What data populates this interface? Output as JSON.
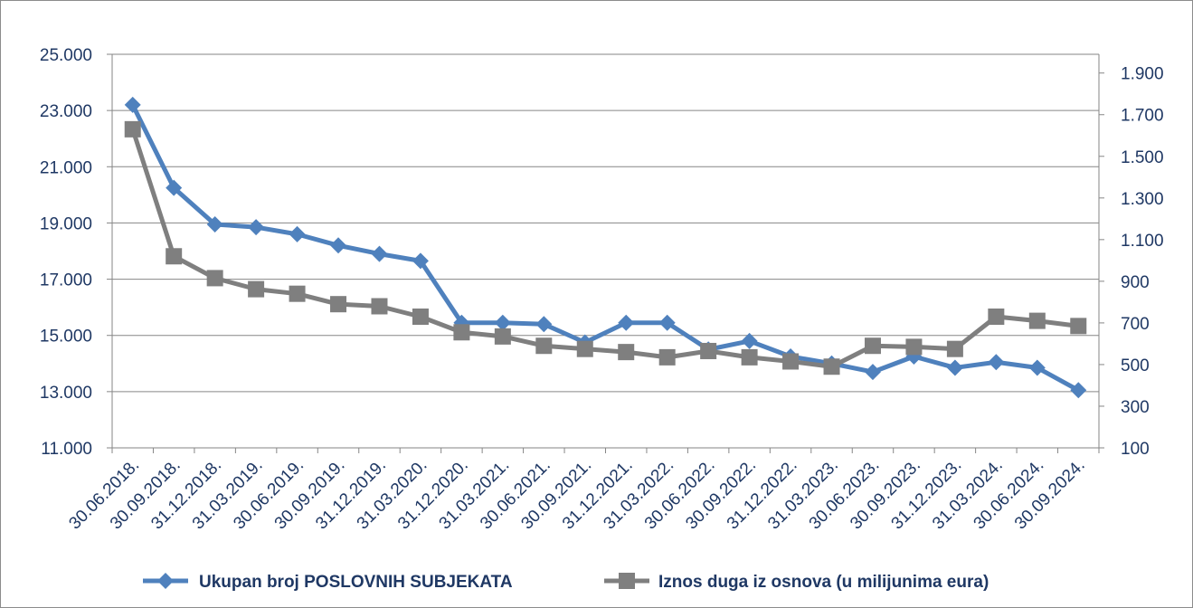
{
  "chart_data": {
    "type": "line",
    "categories": [
      "30.06.2018.",
      "30.09.2018.",
      "31.12.2018.",
      "31.03.2019.",
      "30.06.2019.",
      "30.09.2019.",
      "31.12.2019.",
      "31.03.2020.",
      "31.12.2020.",
      "31.03.2021.",
      "30.06.2021.",
      "30.09.2021.",
      "31.12.2021.",
      "31.03.2022.",
      "30.06.2022.",
      "30.09.2022.",
      "31.12.2022.",
      "31.03.2023.",
      "30.06.2023.",
      "30.09.2023.",
      "31.12.2023.",
      "31.03.2024.",
      "30.06.2024.",
      "30.09.2024."
    ],
    "series": [
      {
        "name": "Ukupan broj POSLOVNIH SUBJEKATA",
        "axis": "left",
        "color": "#4f81bd",
        "marker": "diamond",
        "values": [
          23200,
          20250,
          18950,
          18850,
          18600,
          18200,
          17900,
          17650,
          15450,
          15450,
          15400,
          14750,
          15450,
          15450,
          14500,
          14800,
          14250,
          14000,
          13700,
          14250,
          13850,
          14050,
          13850,
          13050
        ]
      },
      {
        "name": "Iznos duga iz osnova (u milijunima eura)",
        "axis": "right",
        "color": "#7f7f7f",
        "marker": "square",
        "values": [
          1630,
          1020,
          915,
          862,
          840,
          790,
          780,
          730,
          655,
          635,
          590,
          575,
          560,
          535,
          565,
          535,
          515,
          490,
          590,
          585,
          575,
          730,
          710,
          685
        ]
      }
    ],
    "y_left": {
      "min": 11000,
      "max": 25000,
      "ticks": [
        "11.000",
        "13.000",
        "15.000",
        "17.000",
        "19.000",
        "21.000",
        "23.000",
        "25.000"
      ]
    },
    "y_right": {
      "min": 100,
      "max": 1990,
      "ticks": [
        "100",
        "300",
        "500",
        "700",
        "900",
        "1.100",
        "1.300",
        "1.500",
        "1.700",
        "1.900"
      ]
    },
    "grid": true,
    "legend_position": "bottom"
  }
}
